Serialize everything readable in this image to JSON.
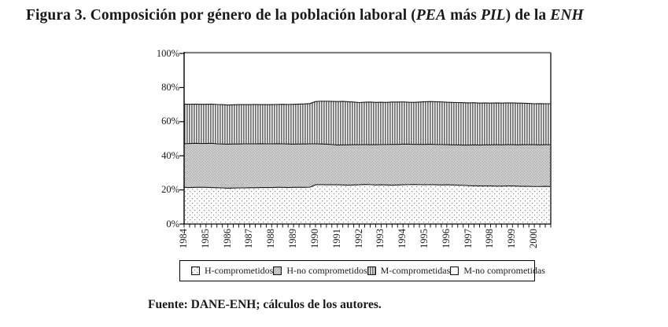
{
  "figure": {
    "title": {
      "prefix": "Figura 3. Composición por género de la población laboral (",
      "pea": "PEA",
      "mid": " más ",
      "pil": "PIL",
      "suffix": ") de la ",
      "enh": "ENH"
    },
    "source": "Fuente: DANE-ENH; cálculos de los autores."
  },
  "chart_data": {
    "type": "area",
    "stacked": true,
    "stack_total": 100,
    "title": "",
    "xlabel": "",
    "ylabel": "",
    "x_unit": "quarter",
    "x_start": "1984",
    "x_end": "2000",
    "points_per_year": 4,
    "x_tick_labels": [
      "1984",
      "1985",
      "1986",
      "1987",
      "1988",
      "1989",
      "1990",
      "1991",
      "1992",
      "1993",
      "1994",
      "1995",
      "1996",
      "1997",
      "1998",
      "1999",
      "2000"
    ],
    "ylim": [
      0,
      100
    ],
    "ytick_labels": [
      "0%",
      "20%",
      "40%",
      "60%",
      "80%",
      "100%"
    ],
    "ytick_values": [
      0,
      20,
      40,
      60,
      80,
      100
    ],
    "grid": false,
    "legend_position": "bottom",
    "frame_color": "#7f7f7f",
    "axis_color": "#000000",
    "boundary_line_color": "#161616",
    "series": [
      {
        "name": "H-comprometidos",
        "pattern": "dots",
        "values": [
          21.5,
          21.4,
          21.5,
          21.5,
          21.5,
          21.4,
          21.3,
          21.2,
          21.0,
          21.1,
          21.2,
          21.2,
          21.3,
          21.3,
          21.4,
          21.4,
          21.4,
          21.5,
          21.5,
          21.4,
          21.5,
          21.5,
          21.5,
          21.6,
          23.0,
          23.1,
          23.0,
          23.0,
          23.0,
          22.9,
          22.8,
          22.9,
          23.0,
          23.2,
          23.1,
          22.9,
          23.0,
          22.9,
          22.8,
          22.9,
          23.0,
          23.1,
          23.2,
          23.1,
          23.0,
          23.1,
          23.0,
          22.9,
          23.0,
          22.9,
          22.8,
          22.7,
          22.5,
          22.4,
          22.3,
          22.3,
          22.3,
          22.2,
          22.2,
          22.3,
          22.3,
          22.2,
          22.1,
          22.1,
          22.0,
          22.0,
          22.1,
          22.0
        ]
      },
      {
        "name": "H-no comprometidos",
        "pattern": "checker",
        "values": [
          25.5,
          25.8,
          25.8,
          25.7,
          25.7,
          25.9,
          25.7,
          25.7,
          25.8,
          25.8,
          25.7,
          25.8,
          25.7,
          25.7,
          25.7,
          25.6,
          25.6,
          25.6,
          25.5,
          25.5,
          25.3,
          25.4,
          25.4,
          25.4,
          24.0,
          23.8,
          23.8,
          23.6,
          23.3,
          23.5,
          23.6,
          23.6,
          23.5,
          23.4,
          23.4,
          23.6,
          23.6,
          23.7,
          23.9,
          23.8,
          23.8,
          23.7,
          23.5,
          23.6,
          23.7,
          23.7,
          23.6,
          23.7,
          23.5,
          23.5,
          23.6,
          23.6,
          23.8,
          24.0,
          24.0,
          24.1,
          24.1,
          24.3,
          24.2,
          24.2,
          24.2,
          24.2,
          24.4,
          24.4,
          24.5,
          24.4,
          24.4,
          24.5
        ]
      },
      {
        "name": "M-comprometidas",
        "pattern": "vlines",
        "values": [
          23.3,
          23.0,
          23.0,
          23.0,
          23.0,
          23.0,
          23.1,
          23.1,
          23.0,
          23.0,
          23.1,
          23.0,
          23.0,
          23.1,
          22.9,
          23.0,
          23.0,
          23.0,
          23.2,
          23.2,
          23.4,
          23.4,
          23.5,
          23.6,
          24.8,
          25.1,
          25.2,
          25.3,
          25.5,
          25.5,
          25.3,
          25.0,
          24.7,
          24.8,
          25.0,
          24.8,
          24.8,
          24.7,
          24.8,
          24.8,
          24.8,
          24.6,
          24.6,
          24.8,
          25.0,
          25.0,
          25.1,
          25.0,
          24.9,
          24.9,
          24.8,
          24.8,
          24.7,
          24.7,
          24.6,
          24.6,
          24.5,
          24.5,
          24.5,
          24.5,
          24.5,
          24.5,
          24.3,
          24.2,
          24.0,
          24.2,
          24.0,
          24.0
        ]
      },
      {
        "name": "M-no comprometidas",
        "pattern": "plain",
        "values": [
          29.7,
          29.8,
          29.7,
          29.8,
          29.8,
          29.7,
          29.9,
          30.0,
          30.2,
          30.1,
          30.0,
          30.0,
          30.0,
          29.9,
          30.0,
          30.0,
          30.0,
          29.9,
          29.8,
          29.9,
          29.8,
          29.7,
          29.6,
          29.4,
          28.2,
          28.0,
          28.0,
          28.1,
          28.2,
          28.1,
          28.3,
          28.5,
          28.8,
          28.6,
          28.5,
          28.7,
          28.6,
          28.7,
          28.5,
          28.5,
          28.4,
          28.6,
          28.7,
          28.5,
          28.3,
          28.2,
          28.3,
          28.4,
          28.6,
          28.7,
          28.8,
          28.9,
          29.0,
          28.9,
          29.1,
          29.0,
          29.1,
          29.0,
          29.1,
          29.0,
          29.0,
          29.1,
          29.2,
          29.3,
          29.5,
          29.4,
          29.5,
          29.5
        ]
      }
    ]
  }
}
